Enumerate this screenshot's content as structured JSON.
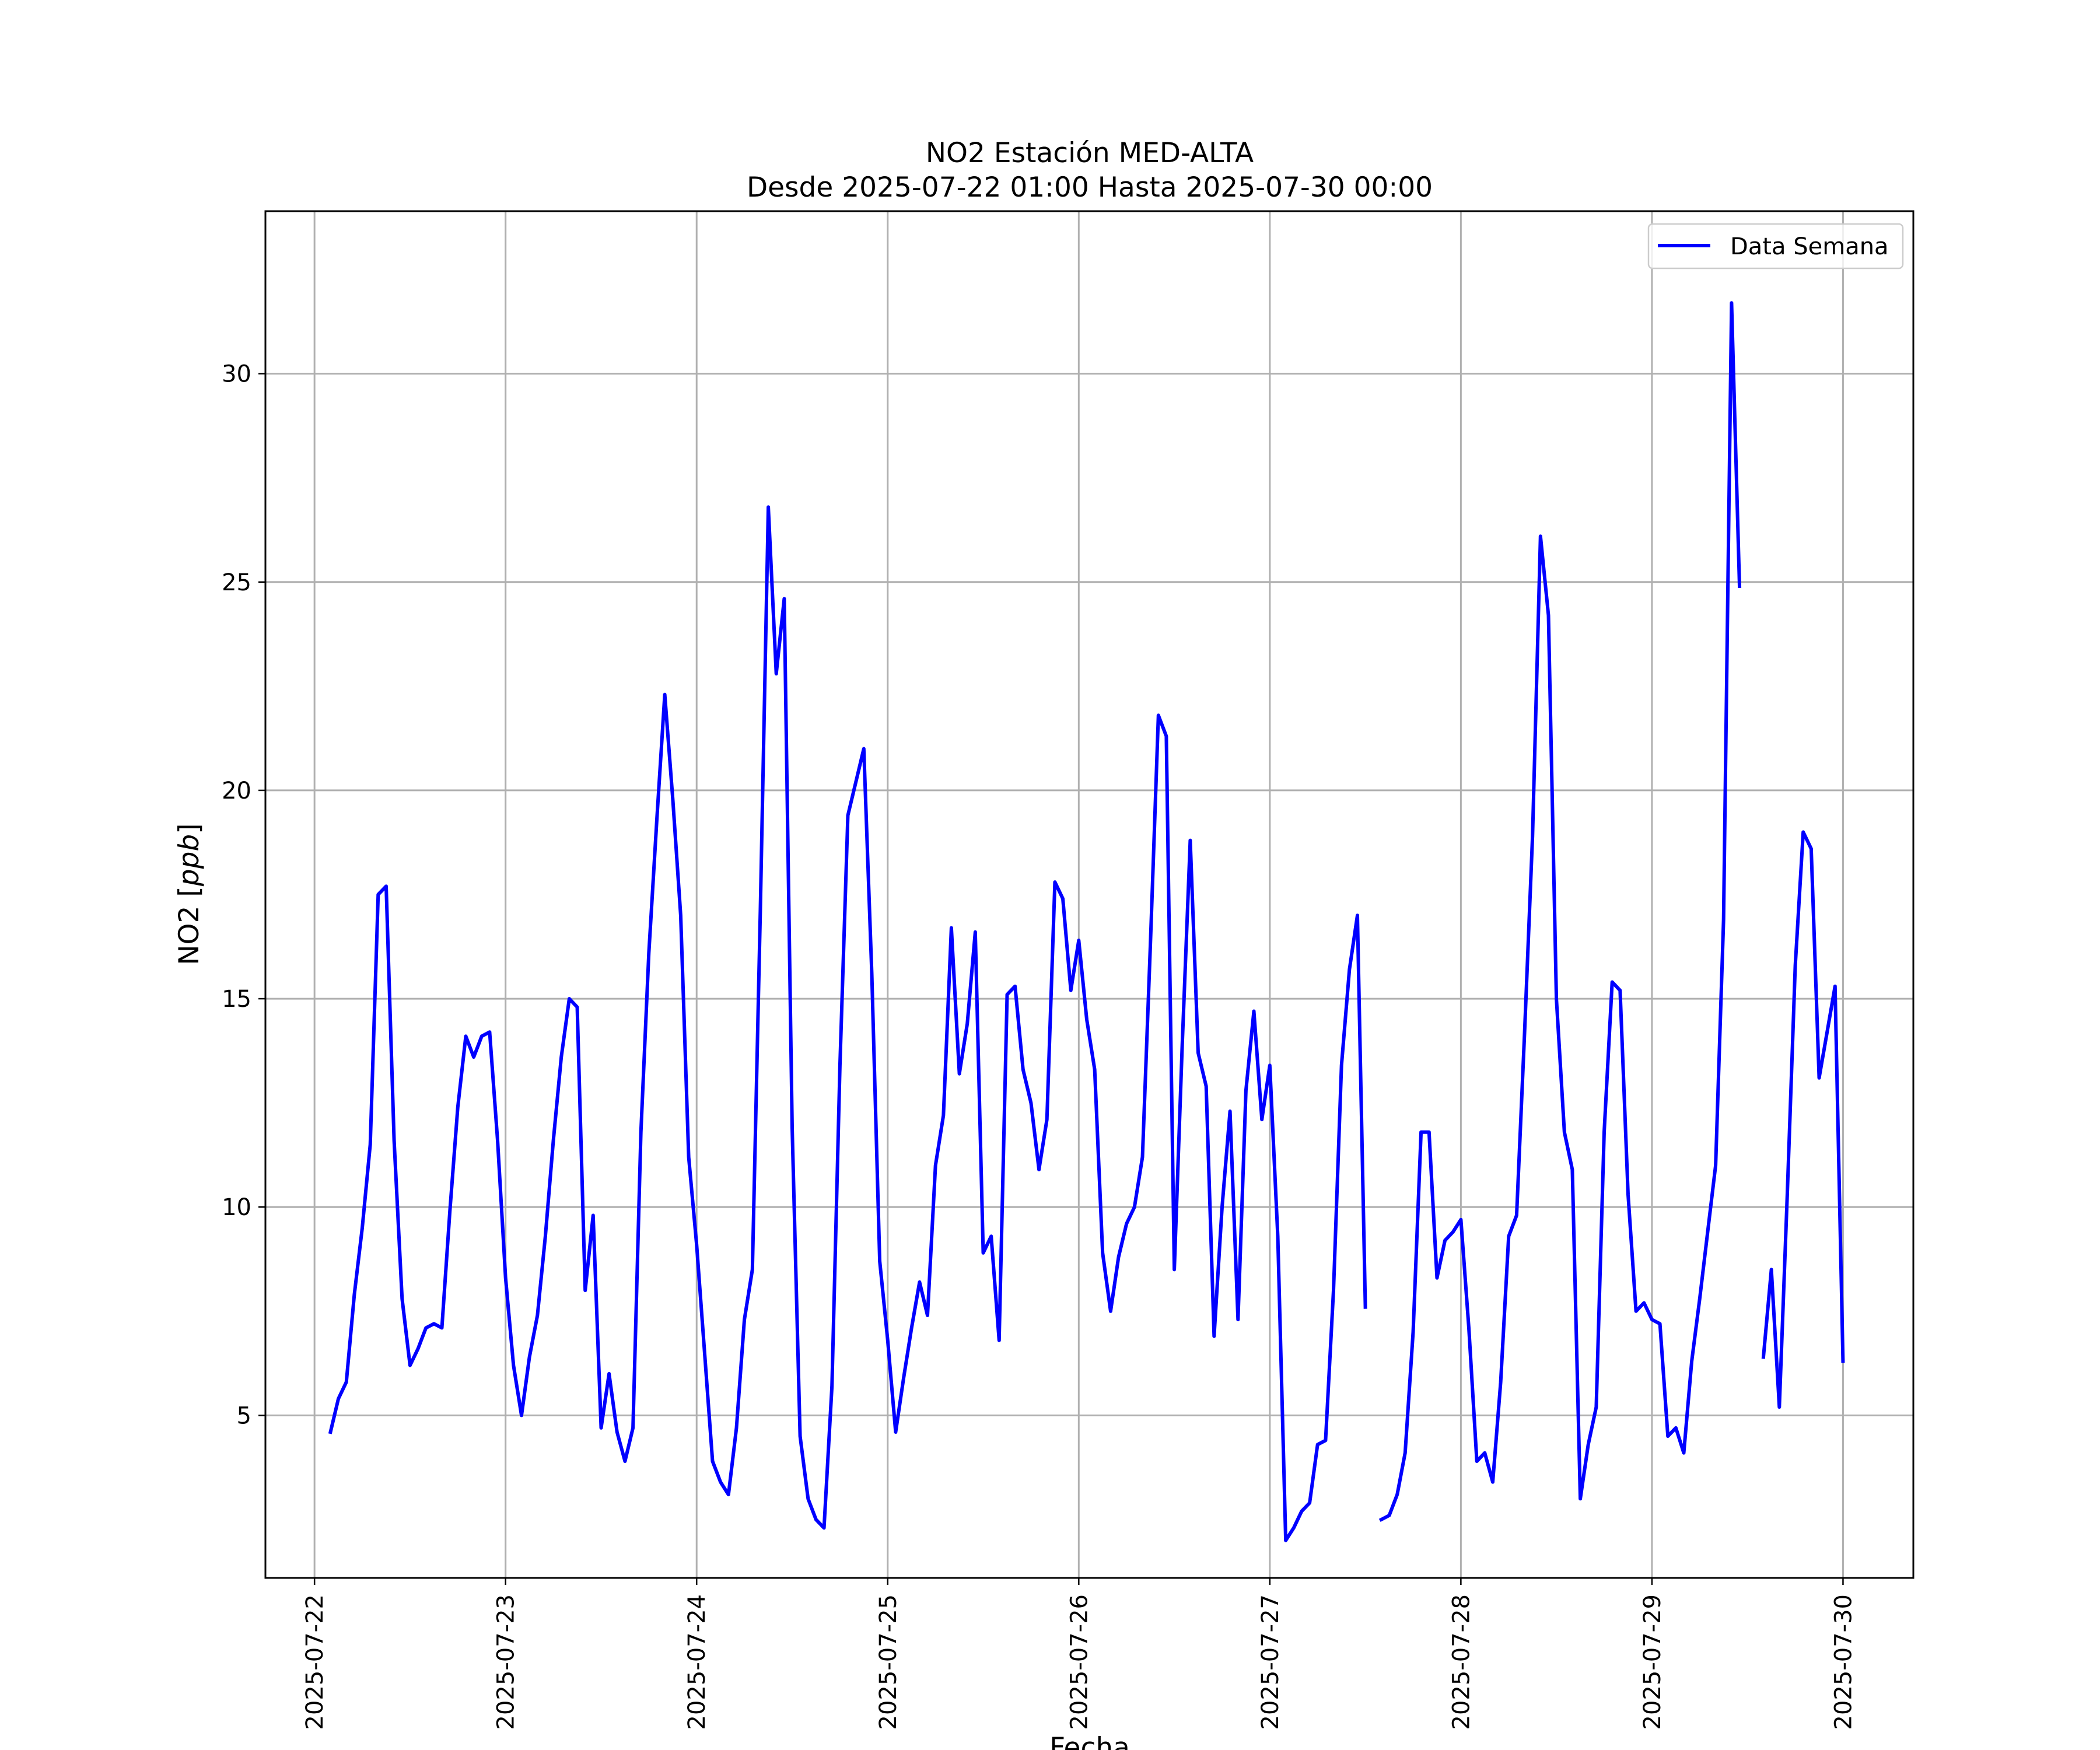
{
  "chart_data": {
    "type": "line",
    "title": "NO2 Estación MED-ALTA",
    "subtitle": "Desde 2025-07-22 01:00 Hasta 2025-07-30 00:00",
    "xlabel": "Fecha",
    "ylabel_main": "NO2 [",
    "ylabel_italic": "ppb",
    "ylabel_end": "]",
    "xlim": [
      "2025-07-21 17:50",
      "2025-07-30 08:50"
    ],
    "ylim": [
      1.1,
      33.9
    ],
    "xticks": [
      "2025-07-22",
      "2025-07-23",
      "2025-07-24",
      "2025-07-25",
      "2025-07-26",
      "2025-07-27",
      "2025-07-28",
      "2025-07-29",
      "2025-07-30"
    ],
    "yticks": [
      5,
      10,
      15,
      20,
      25,
      30
    ],
    "grid": true,
    "legend_position": "top-right",
    "colors": {
      "line": "#0000ff",
      "grid": "#b0b0b0",
      "frame": "#000000"
    },
    "series": [
      {
        "name": "Data Semana",
        "segments": [
          [
            [
              "2025-07-22 02:00",
              4.6
            ],
            [
              "2025-07-22 03:00",
              5.4
            ],
            [
              "2025-07-22 04:00",
              5.8
            ],
            [
              "2025-07-22 05:00",
              7.9
            ],
            [
              "2025-07-22 06:00",
              9.5
            ],
            [
              "2025-07-22 07:00",
              11.5
            ],
            [
              "2025-07-22 08:00",
              17.5
            ],
            [
              "2025-07-22 09:00",
              17.7
            ],
            [
              "2025-07-22 10:00",
              11.6
            ],
            [
              "2025-07-22 11:00",
              7.8
            ],
            [
              "2025-07-22 12:00",
              6.2
            ],
            [
              "2025-07-22 13:00",
              6.6
            ],
            [
              "2025-07-22 14:00",
              7.1
            ],
            [
              "2025-07-22 15:00",
              7.2
            ],
            [
              "2025-07-22 16:00",
              7.1
            ],
            [
              "2025-07-22 17:00",
              9.9
            ],
            [
              "2025-07-22 18:00",
              12.4
            ],
            [
              "2025-07-22 19:00",
              14.1
            ],
            [
              "2025-07-22 20:00",
              13.6
            ],
            [
              "2025-07-22 21:00",
              14.1
            ],
            [
              "2025-07-22 22:00",
              14.2
            ],
            [
              "2025-07-22 23:00",
              11.6
            ],
            [
              "2025-07-23 00:00",
              8.3
            ],
            [
              "2025-07-23 01:00",
              6.2
            ],
            [
              "2025-07-23 02:00",
              5.0
            ],
            [
              "2025-07-23 03:00",
              6.4
            ],
            [
              "2025-07-23 04:00",
              7.4
            ],
            [
              "2025-07-23 05:00",
              9.3
            ],
            [
              "2025-07-23 06:00",
              11.6
            ],
            [
              "2025-07-23 07:00",
              13.6
            ],
            [
              "2025-07-23 08:00",
              15.0
            ],
            [
              "2025-07-23 09:00",
              14.8
            ],
            [
              "2025-07-23 10:00",
              8.0
            ],
            [
              "2025-07-23 11:00",
              9.8
            ],
            [
              "2025-07-23 12:00",
              4.7
            ],
            [
              "2025-07-23 13:00",
              6.0
            ],
            [
              "2025-07-23 14:00",
              4.6
            ],
            [
              "2025-07-23 15:00",
              3.9
            ],
            [
              "2025-07-23 16:00",
              4.7
            ],
            [
              "2025-07-23 17:00",
              11.8
            ],
            [
              "2025-07-23 18:00",
              16.1
            ],
            [
              "2025-07-23 19:00",
              19.3
            ],
            [
              "2025-07-23 20:00",
              22.3
            ],
            [
              "2025-07-23 21:00",
              19.8
            ],
            [
              "2025-07-23 22:00",
              17.0
            ],
            [
              "2025-07-23 23:00",
              11.2
            ],
            [
              "2025-07-24 00:00",
              9.1
            ],
            [
              "2025-07-24 01:00",
              6.5
            ],
            [
              "2025-07-24 02:00",
              3.9
            ],
            [
              "2025-07-24 03:00",
              3.4
            ],
            [
              "2025-07-24 04:00",
              3.1
            ],
            [
              "2025-07-24 05:00",
              4.7
            ],
            [
              "2025-07-24 06:00",
              7.3
            ],
            [
              "2025-07-24 07:00",
              8.5
            ],
            [
              "2025-07-24 08:00",
              17.1
            ],
            [
              "2025-07-24 09:00",
              26.8
            ],
            [
              "2025-07-24 10:00",
              22.8
            ],
            [
              "2025-07-24 11:00",
              24.6
            ],
            [
              "2025-07-24 12:00",
              11.9
            ],
            [
              "2025-07-24 13:00",
              4.5
            ],
            [
              "2025-07-24 14:00",
              3.0
            ],
            [
              "2025-07-24 15:00",
              2.5
            ],
            [
              "2025-07-24 16:00",
              2.3
            ],
            [
              "2025-07-24 17:00",
              5.7
            ],
            [
              "2025-07-24 18:00",
              13.4
            ],
            [
              "2025-07-24 19:00",
              19.4
            ],
            [
              "2025-07-24 20:00",
              20.2
            ],
            [
              "2025-07-24 21:00",
              21.0
            ],
            [
              "2025-07-24 22:00",
              15.6
            ],
            [
              "2025-07-24 23:00",
              8.7
            ],
            [
              "2025-07-25 00:00",
              6.8
            ],
            [
              "2025-07-25 01:00",
              4.6
            ],
            [
              "2025-07-25 02:00",
              5.9
            ],
            [
              "2025-07-25 03:00",
              7.1
            ],
            [
              "2025-07-25 04:00",
              8.2
            ],
            [
              "2025-07-25 05:00",
              7.4
            ],
            [
              "2025-07-25 06:00",
              11.0
            ],
            [
              "2025-07-25 07:00",
              12.2
            ],
            [
              "2025-07-25 08:00",
              16.7
            ],
            [
              "2025-07-25 09:00",
              13.2
            ],
            [
              "2025-07-25 10:00",
              14.4
            ],
            [
              "2025-07-25 11:00",
              16.6
            ],
            [
              "2025-07-25 12:00",
              8.9
            ],
            [
              "2025-07-25 13:00",
              9.3
            ],
            [
              "2025-07-25 14:00",
              6.8
            ],
            [
              "2025-07-25 15:00",
              15.1
            ],
            [
              "2025-07-25 16:00",
              15.3
            ],
            [
              "2025-07-25 17:00",
              13.3
            ],
            [
              "2025-07-25 18:00",
              12.5
            ],
            [
              "2025-07-25 19:00",
              10.9
            ],
            [
              "2025-07-25 20:00",
              12.1
            ],
            [
              "2025-07-25 21:00",
              17.8
            ],
            [
              "2025-07-25 22:00",
              17.4
            ],
            [
              "2025-07-25 23:00",
              15.2
            ],
            [
              "2025-07-26 00:00",
              16.4
            ],
            [
              "2025-07-26 01:00",
              14.5
            ],
            [
              "2025-07-26 02:00",
              13.3
            ],
            [
              "2025-07-26 03:00",
              8.9
            ],
            [
              "2025-07-26 04:00",
              7.5
            ],
            [
              "2025-07-26 05:00",
              8.8
            ],
            [
              "2025-07-26 06:00",
              9.6
            ],
            [
              "2025-07-26 07:00",
              10.0
            ],
            [
              "2025-07-26 08:00",
              11.2
            ],
            [
              "2025-07-26 09:00",
              16.3
            ],
            [
              "2025-07-26 10:00",
              21.8
            ],
            [
              "2025-07-26 11:00",
              21.3
            ],
            [
              "2025-07-26 12:00",
              8.5
            ],
            [
              "2025-07-26 13:00",
              13.9
            ],
            [
              "2025-07-26 14:00",
              18.8
            ],
            [
              "2025-07-26 15:00",
              13.7
            ],
            [
              "2025-07-26 16:00",
              12.9
            ],
            [
              "2025-07-26 17:00",
              6.9
            ],
            [
              "2025-07-26 18:00",
              10.0
            ],
            [
              "2025-07-26 19:00",
              12.3
            ],
            [
              "2025-07-26 20:00",
              7.3
            ],
            [
              "2025-07-26 21:00",
              12.8
            ],
            [
              "2025-07-26 22:00",
              14.7
            ],
            [
              "2025-07-26 23:00",
              12.1
            ],
            [
              "2025-07-27 00:00",
              13.4
            ],
            [
              "2025-07-27 01:00",
              9.3
            ],
            [
              "2025-07-27 02:00",
              2.0
            ],
            [
              "2025-07-27 03:00",
              2.3
            ],
            [
              "2025-07-27 04:00",
              2.7
            ],
            [
              "2025-07-27 05:00",
              2.9
            ],
            [
              "2025-07-27 06:00",
              4.3
            ],
            [
              "2025-07-27 07:00",
              4.4
            ],
            [
              "2025-07-27 08:00",
              8.0
            ],
            [
              "2025-07-27 09:00",
              13.4
            ],
            [
              "2025-07-27 10:00",
              15.7
            ],
            [
              "2025-07-27 11:00",
              17.0
            ],
            [
              "2025-07-27 12:00",
              7.6
            ]
          ],
          [
            [
              "2025-07-27 14:00",
              2.5
            ],
            [
              "2025-07-27 15:00",
              2.6
            ],
            [
              "2025-07-27 16:00",
              3.1
            ],
            [
              "2025-07-27 17:00",
              4.1
            ],
            [
              "2025-07-27 18:00",
              7.0
            ],
            [
              "2025-07-27 19:00",
              11.8
            ],
            [
              "2025-07-27 20:00",
              11.8
            ],
            [
              "2025-07-27 21:00",
              8.3
            ],
            [
              "2025-07-27 22:00",
              9.2
            ],
            [
              "2025-07-27 23:00",
              9.4
            ],
            [
              "2025-07-28 00:00",
              9.7
            ],
            [
              "2025-07-28 01:00",
              7.1
            ],
            [
              "2025-07-28 02:00",
              3.9
            ],
            [
              "2025-07-28 03:00",
              4.1
            ],
            [
              "2025-07-28 04:00",
              3.4
            ],
            [
              "2025-07-28 05:00",
              5.8
            ],
            [
              "2025-07-28 06:00",
              9.3
            ],
            [
              "2025-07-28 07:00",
              9.8
            ],
            [
              "2025-07-28 08:00",
              14.2
            ],
            [
              "2025-07-28 09:00",
              18.9
            ],
            [
              "2025-07-28 10:00",
              26.1
            ],
            [
              "2025-07-28 11:00",
              24.2
            ],
            [
              "2025-07-28 12:00",
              15.0
            ],
            [
              "2025-07-28 13:00",
              11.8
            ],
            [
              "2025-07-28 14:00",
              10.9
            ],
            [
              "2025-07-28 15:00",
              3.0
            ],
            [
              "2025-07-28 16:00",
              4.3
            ],
            [
              "2025-07-28 17:00",
              5.2
            ],
            [
              "2025-07-28 18:00",
              11.8
            ],
            [
              "2025-07-28 19:00",
              15.4
            ],
            [
              "2025-07-28 20:00",
              15.2
            ],
            [
              "2025-07-28 21:00",
              10.3
            ],
            [
              "2025-07-28 22:00",
              7.5
            ],
            [
              "2025-07-28 23:00",
              7.7
            ],
            [
              "2025-07-29 00:00",
              7.3
            ],
            [
              "2025-07-29 01:00",
              7.2
            ],
            [
              "2025-07-29 02:00",
              4.5
            ],
            [
              "2025-07-29 03:00",
              4.7
            ],
            [
              "2025-07-29 04:00",
              4.1
            ],
            [
              "2025-07-29 05:00",
              6.3
            ],
            [
              "2025-07-29 06:00",
              7.8
            ],
            [
              "2025-07-29 07:00",
              9.4
            ],
            [
              "2025-07-29 08:00",
              11.0
            ],
            [
              "2025-07-29 09:00",
              16.9
            ],
            [
              "2025-07-29 10:00",
              31.7
            ],
            [
              "2025-07-29 11:00",
              24.9
            ]
          ],
          [
            [
              "2025-07-29 14:00",
              6.4
            ],
            [
              "2025-07-29 15:00",
              8.5
            ],
            [
              "2025-07-29 16:00",
              5.2
            ],
            [
              "2025-07-29 17:00",
              10.3
            ],
            [
              "2025-07-29 18:00",
              15.8
            ],
            [
              "2025-07-29 19:00",
              19.0
            ],
            [
              "2025-07-29 20:00",
              18.6
            ],
            [
              "2025-07-29 21:00",
              13.1
            ],
            [
              "2025-07-29 22:00",
              14.2
            ],
            [
              "2025-07-29 23:00",
              15.3
            ],
            [
              "2025-07-30 00:00",
              6.3
            ]
          ]
        ]
      }
    ]
  }
}
